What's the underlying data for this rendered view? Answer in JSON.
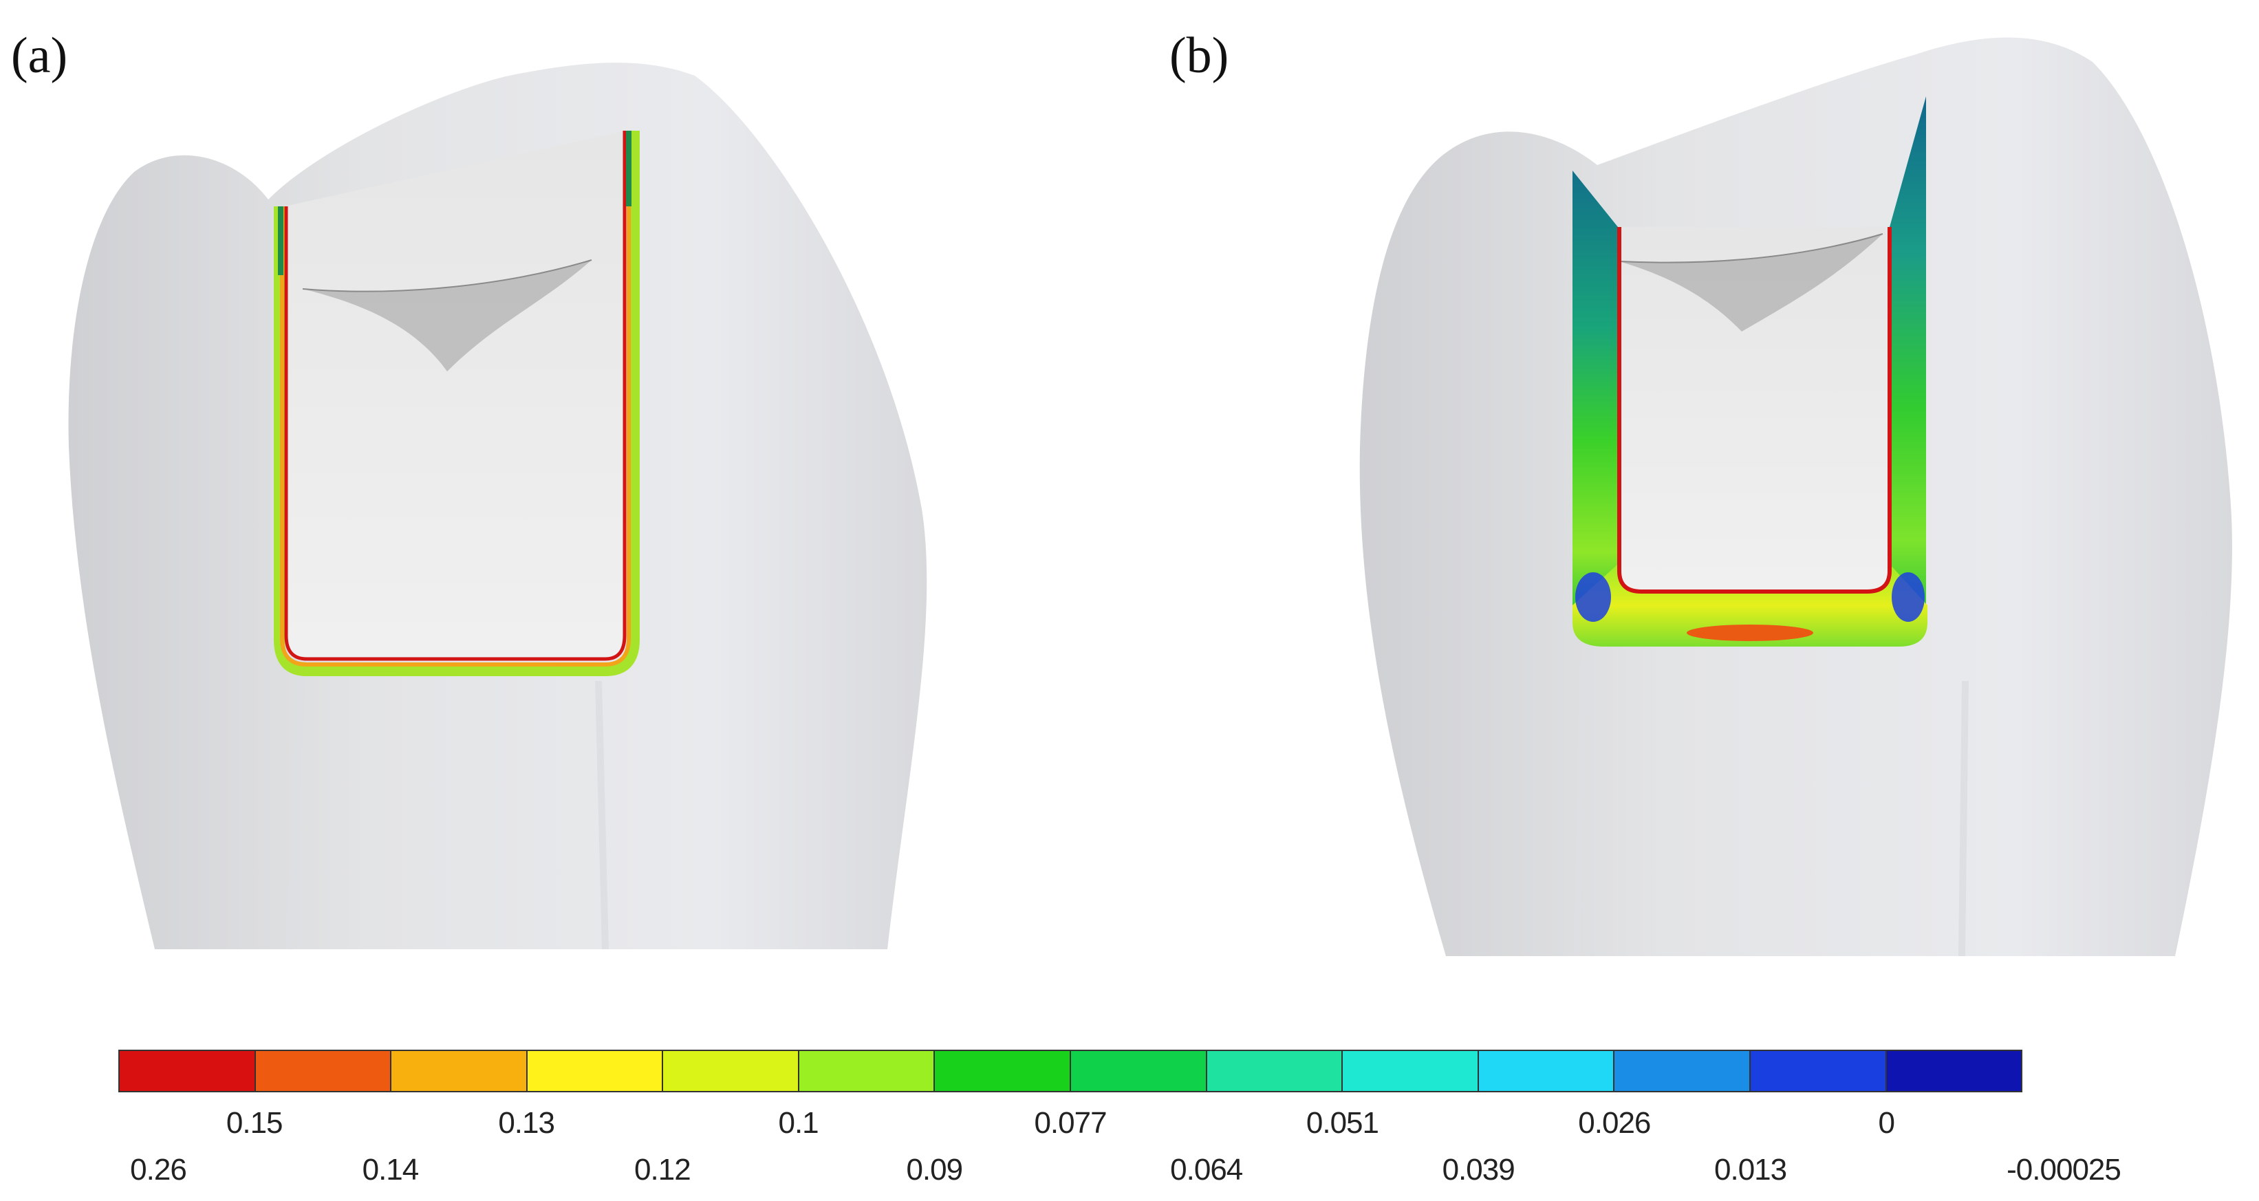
{
  "panels": [
    {
      "label": "(a)"
    },
    {
      "label": "(b)"
    }
  ],
  "legend": {
    "colors": [
      "#d81010",
      "#ee5a10",
      "#f7b00e",
      "#fff21a",
      "#d9f416",
      "#9aef22",
      "#17d11a",
      "#10d24a",
      "#1ee2a0",
      "#1fe8d2",
      "#1ed8f6",
      "#1a8de6",
      "#1a3fe0",
      "#0d14b0"
    ],
    "upper_labels": [
      "0.15",
      "0.13",
      "0.1",
      "0.077",
      "0.051",
      "0.026",
      "0"
    ],
    "lower_labels": [
      "0.26",
      "0.14",
      "0.12",
      "0.09",
      "0.064",
      "0.039",
      "0.013",
      "-0.00025"
    ]
  }
}
